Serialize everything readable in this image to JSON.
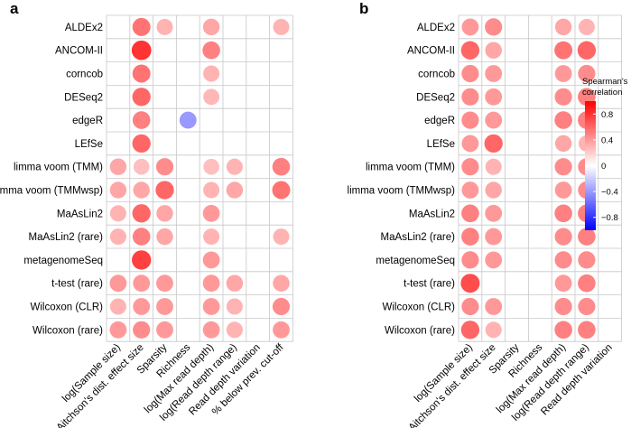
{
  "chart_data": [
    {
      "type": "heatmap",
      "subtype": "correlation-dot-matrix",
      "panel": "a",
      "rows": [
        "ALDEx2",
        "ANCOM-II",
        "corncob",
        "DESeq2",
        "edgeR",
        "LEfSe",
        "limma voom (TMM)",
        "limma voom (TMMwsp)",
        "MaAsLin2",
        "MaAsLin2 (rare)",
        "metagenomeSeq",
        "t-test (rare)",
        "Wilcoxon (CLR)",
        "Wilcoxon (rare)"
      ],
      "columns": [
        "log(Sample size)",
        "Aitchson's dist. effect size",
        "Sparsity",
        "Richness",
        "log(Max read depth)",
        "log(Read depth range)",
        "Read depth variation",
        "% below prev. cut-off"
      ],
      "values": [
        [
          null,
          0.55,
          0.3,
          null,
          0.35,
          null,
          null,
          0.3
        ],
        [
          null,
          0.8,
          null,
          null,
          0.5,
          null,
          null,
          null
        ],
        [
          null,
          0.55,
          null,
          null,
          0.3,
          null,
          null,
          null
        ],
        [
          null,
          0.6,
          null,
          null,
          0.28,
          null,
          null,
          null
        ],
        [
          null,
          0.5,
          null,
          -0.4,
          null,
          null,
          null,
          null
        ],
        [
          null,
          0.6,
          null,
          null,
          null,
          null,
          null,
          null
        ],
        [
          0.35,
          0.25,
          0.45,
          null,
          0.25,
          0.3,
          null,
          0.5
        ],
        [
          0.35,
          0.35,
          0.6,
          null,
          0.3,
          0.35,
          null,
          0.55
        ],
        [
          0.3,
          0.6,
          0.35,
          null,
          0.4,
          null,
          null,
          null
        ],
        [
          0.3,
          0.5,
          0.35,
          null,
          0.3,
          null,
          null,
          0.3
        ],
        [
          null,
          0.75,
          null,
          null,
          0.4,
          null,
          null,
          null
        ],
        [
          0.4,
          0.4,
          0.4,
          null,
          0.4,
          0.35,
          null,
          0.35
        ],
        [
          0.3,
          0.4,
          0.4,
          null,
          0.4,
          0.3,
          null,
          0.45
        ],
        [
          0.4,
          0.45,
          0.4,
          null,
          0.4,
          0.3,
          null,
          0.4
        ]
      ]
    },
    {
      "type": "heatmap",
      "subtype": "correlation-dot-matrix",
      "panel": "b",
      "rows": [
        "ALDEx2",
        "ANCOM-II",
        "corncob",
        "DESeq2",
        "edgeR",
        "LEfSe",
        "limma voom (TMM)",
        "limma voom (TMMwsp)",
        "MaAsLin2",
        "MaAsLin2 (rare)",
        "metagenomeSeq",
        "t-test (rare)",
        "Wilcoxon (CLR)",
        "Wilcoxon (rare)"
      ],
      "columns": [
        "log(Sample size)",
        "Aitchson's dist. effect size",
        "Sparsity",
        "Richness",
        "log(Max read depth)",
        "log(Read depth range)",
        "Read depth variation"
      ],
      "values": [
        [
          0.4,
          0.45,
          null,
          null,
          0.35,
          0.3,
          null
        ],
        [
          0.6,
          0.35,
          null,
          null,
          0.55,
          0.6,
          null
        ],
        [
          0.45,
          0.4,
          null,
          null,
          0.4,
          0.45,
          null
        ],
        [
          0.45,
          0.4,
          null,
          null,
          0.45,
          0.5,
          null
        ],
        [
          0.45,
          0.4,
          null,
          null,
          0.5,
          0.5,
          null
        ],
        [
          0.4,
          0.6,
          null,
          null,
          0.35,
          0.3,
          null
        ],
        [
          0.45,
          0.3,
          null,
          null,
          0.45,
          0.45,
          null
        ],
        [
          0.4,
          0.35,
          null,
          null,
          0.4,
          0.45,
          null
        ],
        [
          0.5,
          0.4,
          null,
          null,
          0.5,
          0.5,
          null
        ],
        [
          0.5,
          0.4,
          null,
          null,
          0.45,
          0.5,
          null
        ],
        [
          0.45,
          0.4,
          null,
          null,
          0.45,
          0.45,
          null
        ],
        [
          0.7,
          null,
          null,
          null,
          0.4,
          0.5,
          null
        ],
        [
          0.45,
          0.4,
          null,
          null,
          0.45,
          0.45,
          null
        ],
        [
          0.6,
          0.3,
          null,
          null,
          0.5,
          0.5,
          null
        ]
      ]
    }
  ],
  "panel_letters": [
    "a",
    "b"
  ],
  "legend": {
    "title_line1": "Spearman's",
    "title_line2": "correlation",
    "ticks": [
      0.8,
      0.4,
      0,
      -0.4,
      -0.8
    ],
    "tick_labels": [
      "0.8",
      "0.4",
      "0",
      "−0.4",
      "−0.8"
    ],
    "range": [
      -1,
      1
    ],
    "colors": {
      "negative": "#0000ff",
      "zero": "#ffffff",
      "positive": "#ff0000"
    }
  }
}
